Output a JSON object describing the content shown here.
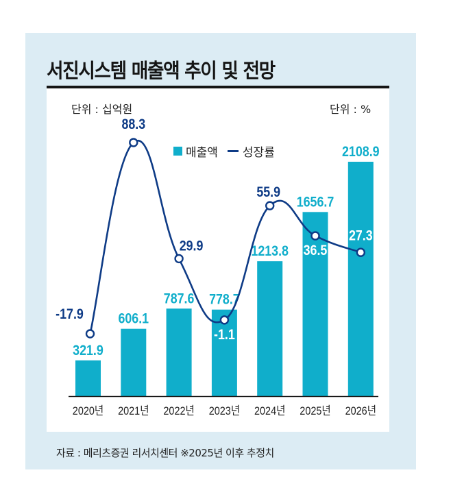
{
  "title": "서진시스템 매출액 추이 및 전망",
  "units": {
    "left": "단위 : 십억원",
    "right": "단위 : %"
  },
  "legend": {
    "bar_label": "매출액",
    "line_label": "성장률"
  },
  "footer": "자료 : 메리츠증권 리서치센터 ※2025년 이후 추정치",
  "colors": {
    "bar": "#10aecb",
    "line": "#0e3b86",
    "background": "#dcecf4",
    "axis": "#151515",
    "text": "#222222"
  },
  "chart_data": {
    "type": "bar+line",
    "title": "서진시스템 매출액 추이 및 전망",
    "categories": [
      "2020년",
      "2021년",
      "2022년",
      "2023년",
      "2024년",
      "2025년",
      "2026년"
    ],
    "series": [
      {
        "name": "매출액",
        "type": "bar",
        "unit": "십억원",
        "axis": "left",
        "values": [
          321.9,
          606.1,
          787.6,
          778.7,
          1213.8,
          1656.7,
          2108.9
        ]
      },
      {
        "name": "성장률",
        "type": "line",
        "unit": "%",
        "axis": "right",
        "values": [
          -17.9,
          88.3,
          29.9,
          -1.1,
          55.9,
          36.5,
          27.3
        ]
      }
    ],
    "bar_labels": [
      "321.9",
      "606.1",
      "787.6",
      "778.7",
      "1213.8",
      "1656.7",
      "2108.9"
    ],
    "line_labels": [
      "-17.9",
      "88.3",
      "29.9",
      "-1.1",
      "55.9",
      "36.5",
      "27.3"
    ],
    "estimates_from": "2025년",
    "ylabel_left": "단위 : 십억원",
    "ylabel_right": "단위 : %",
    "legend": "top-center",
    "grid": false
  }
}
